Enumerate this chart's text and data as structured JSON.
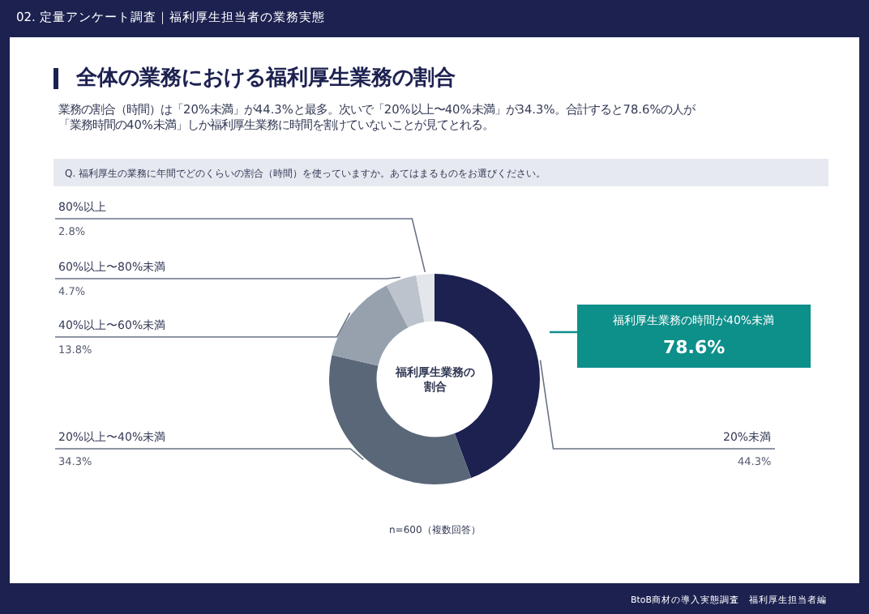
{
  "chart_data": {
    "type": "donut",
    "title": "全体の業務における福利厚生業務の割合",
    "subtitle": "業務の割合（時間）は「20%未満」が44.3%と最多。次いで「20%以上〜40%未満」が34.3%。合計すると78.6%の人が「業務時間の40%未満」しか福利厚生業務に時間を割けていないことが見てとれる。",
    "categories": [
      "20%未満",
      "20%以上〜40%未満",
      "40%以上〜60%未満",
      "60%以上〜80%未満",
      "80%以上"
    ],
    "values": [
      44.3,
      34.3,
      13.8,
      4.7,
      2.8
    ],
    "value_labels": [
      "44.3%",
      "34.3%",
      "13.8%",
      "4.7%",
      "2.8%"
    ],
    "colors": [
      "#1c2150",
      "#5a6779",
      "#97a1ae",
      "#bdc3cc",
      "#e3e6eb"
    ],
    "annotations": [
      "02. 定量アンケート調査｜福利厚生担当者の業務実態",
      "Q. 福利厚生の業務に年間でどのくらいの割合（時間）を使っていますか。あてはまるものをお選びください。",
      "福利厚生業務の割合",
      "福利厚生業務の時間が40%未満",
      "78.6%",
      "n=600（複数回答）",
      "BtoB商材の導入実態調査　福利厚生担当者編"
    ]
  }
}
